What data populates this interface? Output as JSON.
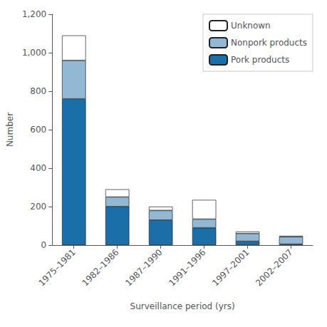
{
  "chart_data": {
    "type": "bar",
    "stacked": true,
    "categories": [
      "1975–1981",
      "1982–1986",
      "1987–1990",
      "1991–1996",
      "1997–2001",
      "2002–2007"
    ],
    "series": [
      {
        "name": "Pork products",
        "color": "#1a6fa8",
        "values": [
          760,
          200,
          130,
          90,
          20,
          5
        ]
      },
      {
        "name": "Nonpork products",
        "color": "#92b8d4",
        "values": [
          200,
          50,
          50,
          45,
          40,
          38
        ]
      },
      {
        "name": "Unknown",
        "color": "#ffffff",
        "values": [
          130,
          40,
          20,
          100,
          10,
          5
        ]
      }
    ],
    "xlabel": "Surveillance period (yrs)",
    "ylabel": "Number",
    "ylim": [
      0,
      1200
    ],
    "yticks": [
      0,
      200,
      400,
      600,
      800,
      {
        "value": 1000,
        "label": "1,000"
      },
      {
        "value": 1200,
        "label": "1,200"
      }
    ],
    "grid": false,
    "legend": "upper right"
  }
}
